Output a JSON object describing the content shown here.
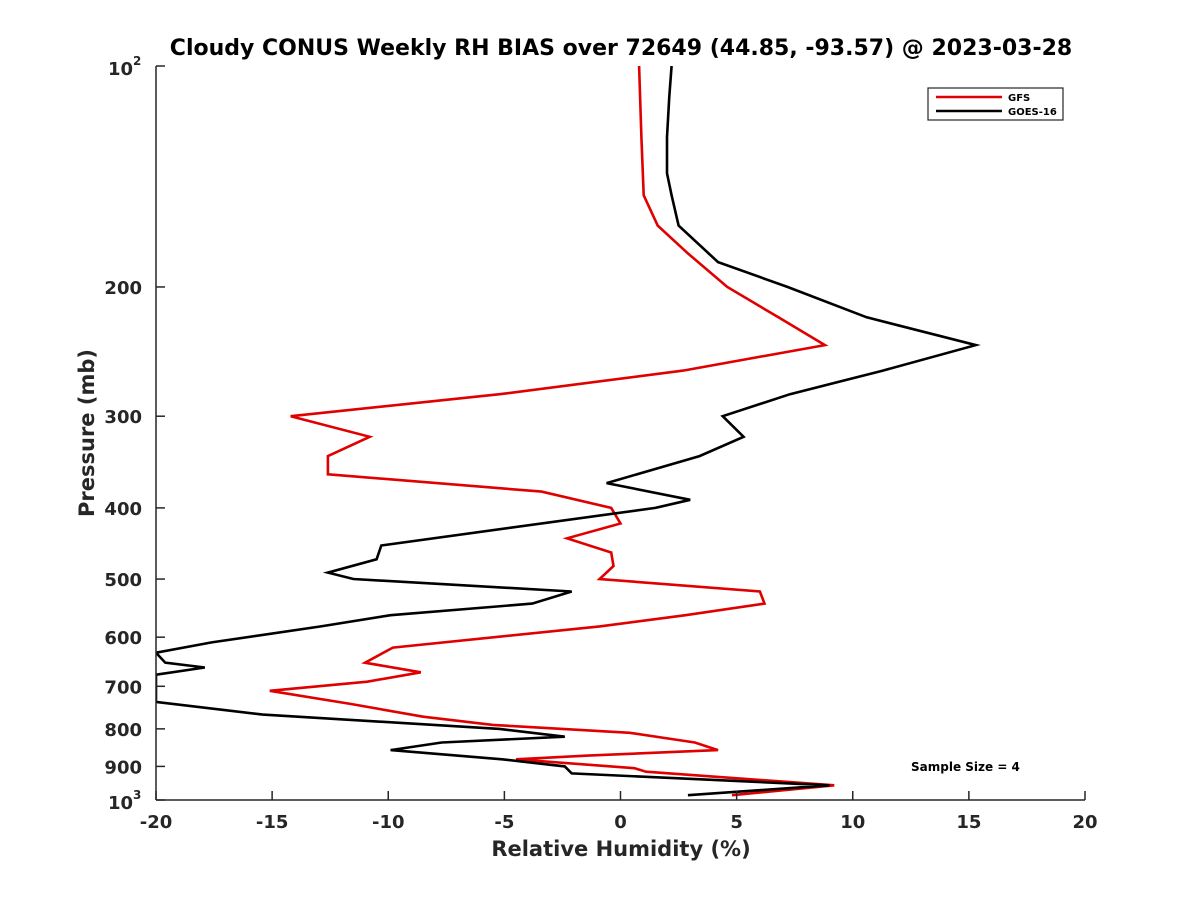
{
  "chart_data": {
    "type": "line",
    "title": "Cloudy CONUS Weekly RH BIAS over 72649 (44.85, -93.57) @ 2023-03-28",
    "xlabel": "Relative Humidity (%)",
    "ylabel": "Pressure (mb)",
    "xlim": [
      -20,
      20
    ],
    "ylim": [
      100,
      1000
    ],
    "y_scale": "log",
    "y_reversed": true,
    "x_ticks": [
      "-20",
      "-15",
      "-10",
      "-5",
      "0",
      "5",
      "10",
      "15",
      "20"
    ],
    "y_ticks": [
      {
        "value": 100,
        "label": "10",
        "exp": "2"
      },
      {
        "value": 200,
        "label": "200"
      },
      {
        "value": 300,
        "label": "300"
      },
      {
        "value": 400,
        "label": "400"
      },
      {
        "value": 500,
        "label": "500"
      },
      {
        "value": 600,
        "label": "600"
      },
      {
        "value": 700,
        "label": "700"
      },
      {
        "value": 800,
        "label": "800"
      },
      {
        "value": 900,
        "label": "900"
      },
      {
        "value": 1000,
        "label": "10",
        "exp": "3"
      }
    ],
    "grid": false,
    "legend_position": "top-right",
    "annotation": "Sample Size = 4",
    "series": [
      {
        "name": "GFS",
        "color": "#e00000",
        "x": [
          0.8,
          0.9,
          1.0,
          1.6,
          2.9,
          4.6,
          6.8,
          8.8,
          2.7,
          -5.2,
          -14.2,
          -10.8,
          -12.6,
          -12.6,
          -3.4,
          -0.4,
          0.0,
          -2.3,
          -0.4,
          -0.3,
          -0.9,
          6.0,
          6.2,
          2.8,
          -0.9,
          -9.8,
          -11.0,
          -8.6,
          -10.9,
          -15.1,
          -11.6,
          -8.5,
          -5.5,
          0.4,
          3.2,
          4.2,
          -1.4,
          -4.5,
          0.6,
          1.1,
          9.2,
          4.8
        ],
        "y": [
          100,
          125,
          150,
          165,
          180,
          200,
          220,
          240,
          260,
          280,
          300,
          320,
          340,
          360,
          380,
          400,
          420,
          440,
          460,
          480,
          500,
          520,
          540,
          560,
          580,
          620,
          650,
          670,
          690,
          710,
          740,
          770,
          790,
          810,
          835,
          855,
          870,
          880,
          905,
          915,
          955,
          985
        ]
      },
      {
        "name": "GOES-16",
        "color": "#000000",
        "x": [
          2.2,
          2.1,
          2.0,
          2.0,
          2.2,
          2.5,
          4.2,
          7.2,
          10.6,
          15.3,
          11.3,
          7.3,
          4.4,
          5.3,
          3.4,
          -0.6,
          3.0,
          1.5,
          -10.3,
          -10.5,
          -12.6,
          -11.5,
          -2.1,
          -3.8,
          -9.9,
          -12.9,
          -17.6,
          -20.0,
          -19.6,
          -17.9,
          -20.0,
          -20.0,
          -15.4,
          -5.2,
          -2.4,
          -7.7,
          -9.9,
          -5.1,
          -2.4,
          -2.1,
          9.0,
          2.9
        ],
        "y": [
          100,
          110,
          125,
          140,
          150,
          165,
          185,
          200,
          220,
          240,
          260,
          280,
          300,
          320,
          340,
          370,
          390,
          400,
          450,
          470,
          490,
          500,
          520,
          540,
          560,
          580,
          610,
          630,
          650,
          660,
          675,
          735,
          765,
          800,
          820,
          835,
          855,
          880,
          900,
          920,
          955,
          985
        ]
      }
    ]
  }
}
